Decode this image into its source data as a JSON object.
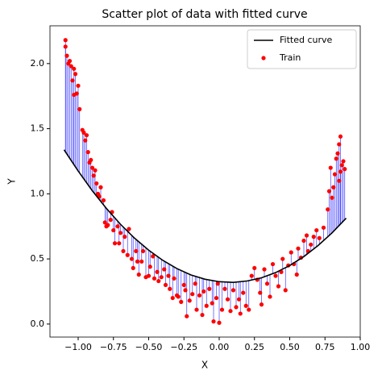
{
  "chart_data": {
    "type": "scatter",
    "title": "Scatter plot of data with fitted curve",
    "xlabel": "X",
    "ylabel": "Y",
    "xlim": [
      -1.2,
      1.0
    ],
    "ylim": [
      -0.1,
      2.29
    ],
    "xticks": [
      {
        "value": -1,
        "label": "−1.00"
      },
      {
        "value": -0.75,
        "label": "−0.75"
      },
      {
        "value": -0.5,
        "label": "−0.50"
      },
      {
        "value": -0.25,
        "label": "−0.25"
      },
      {
        "value": 0,
        "label": "0.00"
      },
      {
        "value": 0.25,
        "label": "0.25"
      },
      {
        "value": 0.5,
        "label": "0.50"
      },
      {
        "value": 0.75,
        "label": "0.75"
      },
      {
        "value": 1,
        "label": "1.00"
      }
    ],
    "yticks": [
      {
        "value": 0,
        "label": "0.0"
      },
      0.5,
      {
        "value": 1,
        "label": "1.0"
      },
      1.5,
      {
        "value": 2,
        "label": "2.0"
      }
    ],
    "grid": false,
    "legend": "upper right",
    "residual_color": "#0000ff",
    "series": [
      {
        "name": "Fitted curve",
        "type": "line",
        "color": "#000000",
        "x": [
          -1.1,
          -1.0,
          -0.9,
          -0.8,
          -0.7,
          -0.6,
          -0.5,
          -0.4,
          -0.3,
          -0.2,
          -0.1,
          0.0,
          0.1,
          0.2,
          0.3,
          0.4,
          0.5,
          0.6,
          0.7,
          0.8,
          0.9
        ],
        "y": [
          1.338,
          1.175,
          1.024,
          0.888,
          0.766,
          0.659,
          0.567,
          0.489,
          0.426,
          0.377,
          0.344,
          0.325,
          0.32,
          0.331,
          0.355,
          0.395,
          0.449,
          0.518,
          0.602,
          0.7,
          0.813
        ]
      },
      {
        "name": "Train",
        "type": "scatter",
        "color": "#ff0000",
        "x": [
          -1.09,
          -1.09,
          -1.08,
          -1.07,
          -1.06,
          -1.05,
          -1.04,
          -1.03,
          -1.03,
          -1.02,
          -1.01,
          -1.0,
          -0.99,
          -0.97,
          -0.96,
          -0.95,
          -0.94,
          -0.93,
          -0.92,
          -0.91,
          -0.9,
          -0.89,
          -0.88,
          -0.87,
          -0.86,
          -0.85,
          -0.84,
          -0.82,
          -0.81,
          -0.8,
          -0.79,
          -0.77,
          -0.76,
          -0.75,
          -0.74,
          -0.72,
          -0.71,
          -0.7,
          -0.68,
          -0.67,
          -0.65,
          -0.64,
          -0.62,
          -0.61,
          -0.59,
          -0.58,
          -0.57,
          -0.55,
          -0.54,
          -0.52,
          -0.5,
          -0.49,
          -0.47,
          -0.46,
          -0.44,
          -0.43,
          -0.41,
          -0.39,
          -0.38,
          -0.36,
          -0.35,
          -0.33,
          -0.32,
          -0.3,
          -0.29,
          -0.27,
          -0.25,
          -0.24,
          -0.23,
          -0.21,
          -0.19,
          -0.17,
          -0.16,
          -0.14,
          -0.12,
          -0.11,
          -0.09,
          -0.07,
          -0.05,
          -0.04,
          -0.02,
          -0.01,
          0.0,
          0.02,
          0.04,
          0.06,
          0.08,
          0.1,
          0.12,
          0.14,
          0.15,
          0.17,
          0.19,
          0.21,
          0.23,
          0.25,
          0.27,
          0.29,
          0.3,
          0.32,
          0.34,
          0.36,
          0.38,
          0.4,
          0.42,
          0.44,
          0.45,
          0.47,
          0.49,
          0.51,
          0.53,
          0.55,
          0.56,
          0.58,
          0.6,
          0.62,
          0.63,
          0.65,
          0.67,
          0.69,
          0.71,
          0.74,
          0.77,
          0.78,
          0.79,
          0.8,
          0.81,
          0.82,
          0.83,
          0.84,
          0.85,
          0.86,
          0.87,
          0.88,
          0.89,
          0.85,
          0.86
        ],
        "y": [
          2.18,
          2.13,
          2.06,
          2.0,
          2.02,
          1.98,
          1.87,
          1.96,
          1.76,
          1.92,
          1.77,
          1.83,
          1.65,
          1.49,
          1.47,
          1.41,
          1.45,
          1.32,
          1.24,
          1.26,
          1.2,
          1.14,
          1.18,
          1.08,
          1.0,
          0.98,
          1.05,
          0.95,
          0.78,
          0.75,
          0.76,
          0.8,
          0.86,
          0.72,
          0.62,
          0.75,
          0.62,
          0.7,
          0.56,
          0.67,
          0.53,
          0.73,
          0.5,
          0.43,
          0.56,
          0.48,
          0.38,
          0.48,
          0.56,
          0.36,
          0.37,
          0.44,
          0.52,
          0.35,
          0.4,
          0.33,
          0.36,
          0.42,
          0.3,
          0.37,
          0.27,
          0.2,
          0.35,
          0.22,
          0.21,
          0.17,
          0.3,
          0.26,
          0.06,
          0.18,
          0.23,
          0.31,
          0.11,
          0.22,
          0.07,
          0.25,
          0.14,
          0.27,
          0.16,
          0.02,
          0.2,
          0.31,
          0.01,
          0.11,
          0.27,
          0.19,
          0.1,
          0.26,
          0.13,
          0.19,
          0.08,
          0.24,
          0.14,
          0.11,
          0.37,
          0.43,
          0.34,
          0.24,
          0.15,
          0.42,
          0.31,
          0.21,
          0.46,
          0.37,
          0.29,
          0.4,
          0.5,
          0.26,
          0.45,
          0.55,
          0.46,
          0.38,
          0.58,
          0.51,
          0.64,
          0.68,
          0.56,
          0.61,
          0.67,
          0.72,
          0.66,
          0.74,
          0.88,
          1.02,
          1.2,
          0.97,
          1.05,
          1.15,
          1.27,
          1.31,
          1.38,
          1.44,
          1.22,
          1.25,
          1.19,
          1.1,
          1.17
        ]
      }
    ]
  }
}
